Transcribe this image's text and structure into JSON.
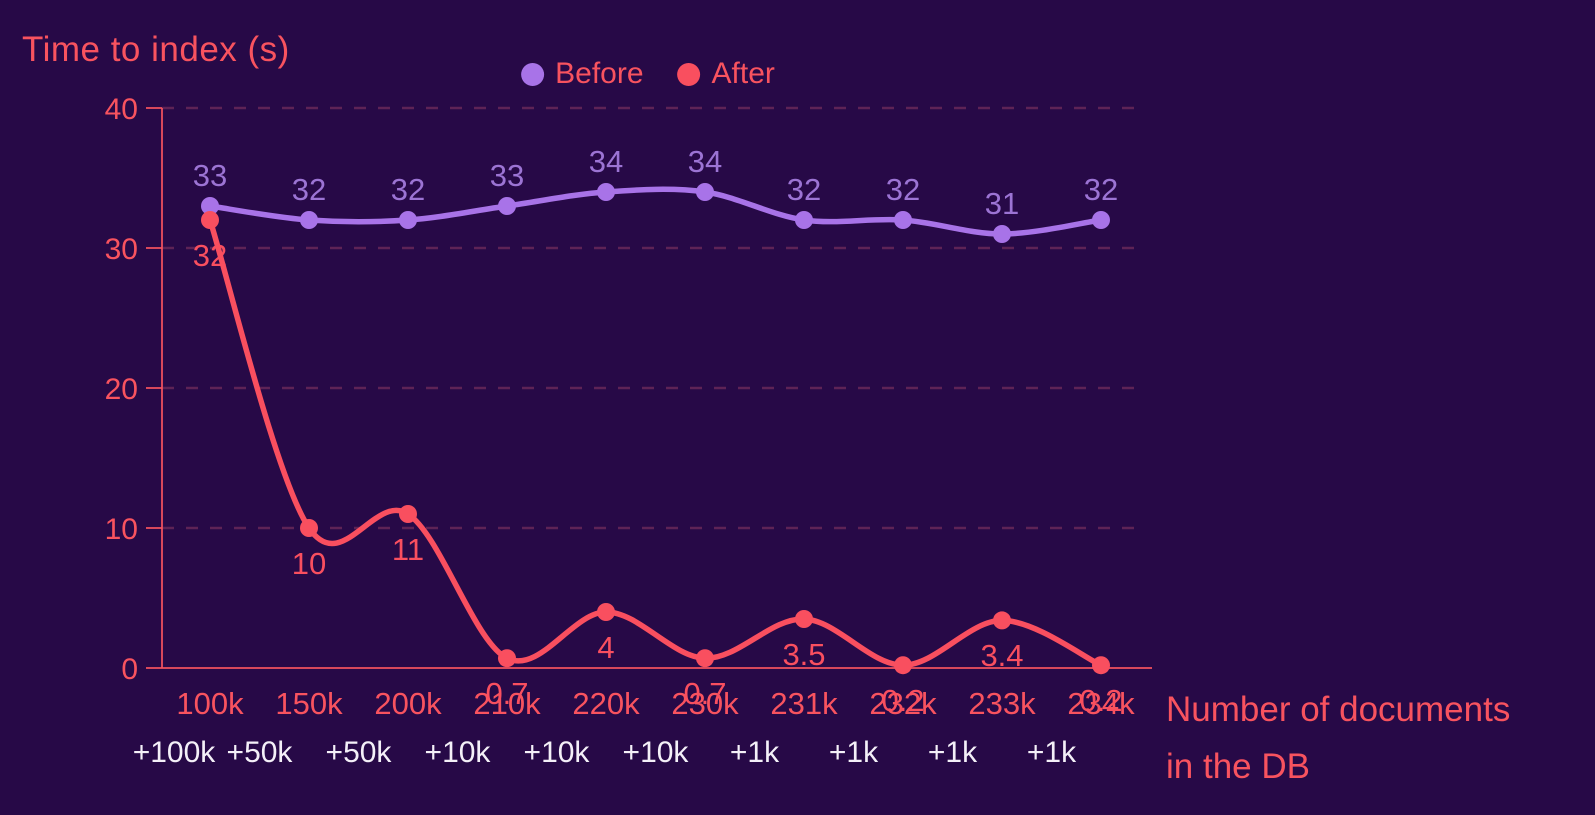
{
  "chart_data": {
    "type": "line",
    "title": "Time to index (s)",
    "x_axis_title_lines": [
      "Number of documents",
      "in the DB"
    ],
    "ylabel": "",
    "categories": [
      "100k",
      "150k",
      "200k",
      "210k",
      "220k",
      "230k",
      "231k",
      "232k",
      "233k",
      "234k"
    ],
    "increment_labels": [
      "+100k",
      "+50k",
      "+50k",
      "+10k",
      "+10k",
      "+10k",
      "+1k",
      "+1k",
      "+1k",
      "+1k"
    ],
    "y_ticks": [
      0,
      10,
      20,
      30,
      40
    ],
    "ylim": [
      0,
      40
    ],
    "grid": "horizontal-dashed",
    "legend_position": "top-center",
    "series": [
      {
        "name": "Before",
        "values": [
          33,
          32,
          32,
          33,
          34,
          34,
          32,
          32,
          31,
          32
        ],
        "color": "#a873e8",
        "label_color": "#9c74d4",
        "label_position": "above"
      },
      {
        "name": "After",
        "values": [
          32,
          10,
          11,
          0.7,
          4,
          0.7,
          3.5,
          0.2,
          3.4,
          0.2
        ],
        "color": "#f94f5f",
        "label_color": "#f94f5f",
        "label_position": "below"
      }
    ],
    "colors": {
      "background": "#270947",
      "axis": "#f8535f",
      "grid_line": "#5e2356",
      "tick_label": "#f8535f",
      "increment_label": "#f4f0f8",
      "title": "#f8535f"
    }
  }
}
